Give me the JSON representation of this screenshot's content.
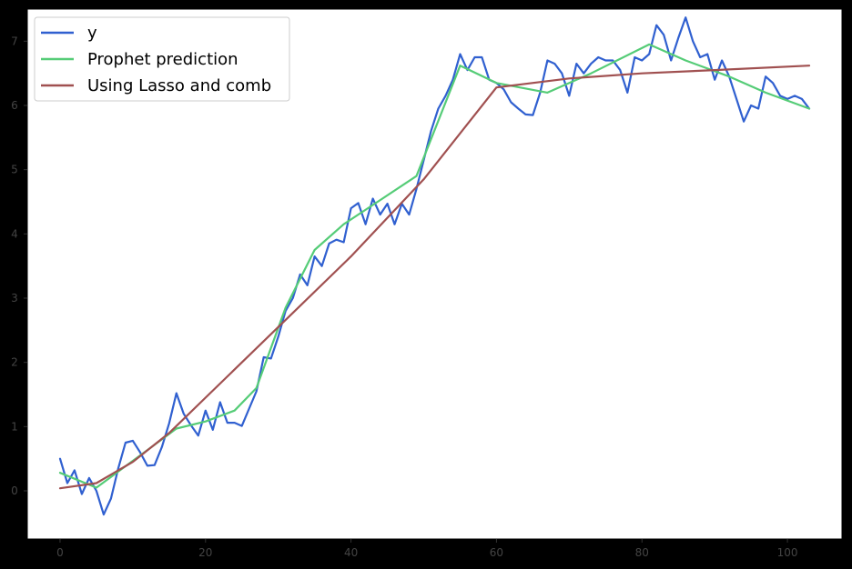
{
  "chart_data": {
    "type": "line",
    "title": "",
    "xlabel": "",
    "ylabel": "",
    "xlim": [
      -4.5,
      107.5
    ],
    "ylim": [
      -0.75,
      7.5
    ],
    "grid": false,
    "legend_position": "top-left",
    "x_ticks": [
      {
        "value": 0,
        "label": "0"
      },
      {
        "value": 20,
        "label": "20"
      },
      {
        "value": 40,
        "label": "40"
      },
      {
        "value": 60,
        "label": "60"
      },
      {
        "value": 80,
        "label": "80"
      },
      {
        "value": 100,
        "label": "100"
      }
    ],
    "y_ticks": [
      {
        "value": 0,
        "label": "0"
      },
      {
        "value": 1,
        "label": "1"
      },
      {
        "value": 2,
        "label": "2"
      },
      {
        "value": 3,
        "label": "3"
      },
      {
        "value": 4,
        "label": "4"
      },
      {
        "value": 5,
        "label": "5"
      },
      {
        "value": 6,
        "label": "6"
      },
      {
        "value": 7,
        "label": "7"
      }
    ],
    "series": [
      {
        "name": "y",
        "color": "#3060d0",
        "x": [
          0,
          1,
          2,
          3,
          4,
          5,
          6,
          7,
          8,
          9,
          10,
          11,
          12,
          13,
          14,
          15,
          16,
          17,
          18,
          19,
          20,
          21,
          22,
          23,
          24,
          25,
          26,
          27,
          28,
          29,
          30,
          31,
          32,
          33,
          34,
          35,
          36,
          37,
          38,
          39,
          40,
          41,
          42,
          43,
          44,
          45,
          46,
          47,
          48,
          49,
          50,
          51,
          52,
          53,
          54,
          55,
          56,
          57,
          58,
          59,
          60,
          61,
          62,
          63,
          64,
          65,
          66,
          67,
          68,
          69,
          70,
          71,
          72,
          73,
          74,
          75,
          76,
          77,
          78,
          79,
          80,
          81,
          82,
          83,
          84,
          85,
          86,
          87,
          88,
          89,
          90,
          91,
          92,
          93,
          94,
          95,
          96,
          97,
          98,
          99,
          100,
          101,
          102,
          103
        ],
        "values": [
          0.5,
          0.12,
          0.32,
          -0.05,
          0.2,
          0.0,
          -0.37,
          -0.12,
          0.35,
          0.75,
          0.78,
          0.6,
          0.39,
          0.4,
          0.68,
          1.05,
          1.52,
          1.2,
          1.02,
          0.86,
          1.25,
          0.95,
          1.38,
          1.06,
          1.06,
          1.01,
          1.28,
          1.55,
          2.08,
          2.06,
          2.4,
          2.8,
          3.0,
          3.37,
          3.2,
          3.65,
          3.5,
          3.85,
          3.91,
          3.87,
          4.4,
          4.48,
          4.15,
          4.55,
          4.3,
          4.47,
          4.15,
          4.47,
          4.3,
          4.7,
          5.15,
          5.6,
          5.95,
          6.15,
          6.4,
          6.8,
          6.55,
          6.75,
          6.75,
          6.4,
          6.35,
          6.25,
          6.05,
          5.95,
          5.86,
          5.85,
          6.2,
          6.7,
          6.65,
          6.5,
          6.15,
          6.65,
          6.5,
          6.65,
          6.75,
          6.7,
          6.7,
          6.55,
          6.2,
          6.75,
          6.7,
          6.8,
          7.25,
          7.1,
          6.7,
          7.05,
          7.37,
          7.0,
          6.75,
          6.8,
          6.4,
          6.7,
          6.45,
          6.1,
          5.75,
          6.0,
          5.95,
          6.45,
          6.35,
          6.15,
          6.1,
          6.15,
          6.1,
          5.95
        ]
      },
      {
        "name": "Prophet prediction",
        "color": "#55cc77",
        "x": [
          0,
          5,
          11,
          16,
          20,
          24,
          27,
          31,
          35,
          39,
          43,
          49,
          55,
          60,
          67,
          73,
          81,
          86,
          92,
          97,
          103
        ],
        "values": [
          0.28,
          0.05,
          0.55,
          0.97,
          1.08,
          1.25,
          1.6,
          2.85,
          3.75,
          4.15,
          4.45,
          4.9,
          6.62,
          6.35,
          6.2,
          6.5,
          6.95,
          6.7,
          6.45,
          6.2,
          5.95
        ]
      },
      {
        "name": "Using Lasso and comb",
        "color": "#a05050",
        "x": [
          0,
          5,
          10,
          15,
          20,
          30,
          40,
          50,
          60,
          70,
          80,
          90,
          103
        ],
        "values": [
          0.04,
          0.12,
          0.45,
          0.9,
          1.45,
          2.55,
          3.65,
          4.85,
          6.28,
          6.42,
          6.5,
          6.55,
          6.62
        ]
      }
    ]
  }
}
